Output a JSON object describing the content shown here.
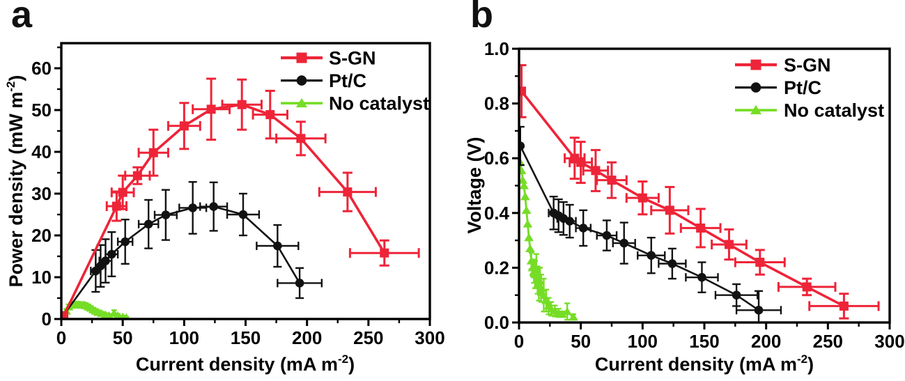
{
  "figure": {
    "background": "#ffffff",
    "text_color": "#000000"
  },
  "chart_data": [
    {
      "type": "line",
      "panel_label": "a",
      "title": "",
      "xlabel": {
        "main": "Current density (mA m",
        "sup": "-2",
        "close": ")"
      },
      "ylabel": {
        "main": "Power density (mW m",
        "sup": "-2",
        "close": ")"
      },
      "xlim": [
        0,
        300
      ],
      "ylim": [
        0,
        66
      ],
      "xticks": [
        0,
        50,
        100,
        150,
        200,
        250,
        300
      ],
      "xtick_labels": [
        "0",
        "50",
        "100",
        "150",
        "200",
        "250",
        "300"
      ],
      "xminor_step": 25,
      "yticks": [
        0,
        10,
        20,
        30,
        40,
        50,
        60
      ],
      "ytick_labels": [
        "0",
        "10",
        "20",
        "30",
        "40",
        "50",
        "60"
      ],
      "yminor_step": 5,
      "grid": false,
      "legend_position": "top-right-inside",
      "series": [
        {
          "name": "S-GN",
          "color": "#ee2438",
          "marker": "square",
          "x": [
            2,
            45,
            50,
            62,
            75,
            100,
            122,
            147,
            170,
            195,
            233,
            263
          ],
          "y": [
            0.8,
            27,
            30.3,
            34.3,
            39.8,
            46.2,
            50.2,
            51.3,
            48.9,
            43.2,
            30.4,
            15.8
          ],
          "xerr": [
            0,
            8,
            9,
            10,
            12,
            13,
            15,
            16,
            14,
            20,
            23,
            28
          ],
          "yerr": [
            0,
            3.5,
            4,
            2,
            5.5,
            5.5,
            7.3,
            6,
            5.7,
            4,
            4.6,
            3
          ]
        },
        {
          "name": "Pt/C",
          "color": "#121212",
          "marker": "circle",
          "x": [
            0,
            28,
            32,
            36,
            41,
            52,
            71,
            85,
            107,
            124,
            148,
            176,
            194
          ],
          "y": [
            0.2,
            11.5,
            12.7,
            13.9,
            15.5,
            18.5,
            22.7,
            24.9,
            26.6,
            26.9,
            25.0,
            17.5,
            8.6
          ],
          "xerr": [
            0,
            4,
            4,
            5,
            5,
            6,
            8,
            9,
            11,
            11,
            13,
            17,
            18
          ],
          "yerr": [
            0,
            5,
            5,
            5.2,
            5.3,
            5.3,
            5.8,
            6,
            6.2,
            5.8,
            5,
            5,
            3.6
          ]
        },
        {
          "name": "No catalyst",
          "color": "#76dd26",
          "marker": "triangle",
          "x": [
            2,
            4,
            6,
            8,
            10,
            12,
            14,
            16,
            18,
            20,
            22,
            24,
            26,
            28,
            30,
            33,
            36,
            39,
            43,
            46,
            50,
            53
          ],
          "y": [
            0.6,
            1.9,
            2.9,
            3.3,
            3.5,
            3.4,
            3.5,
            3.3,
            3.4,
            3.2,
            2.9,
            2.6,
            2.2,
            1.9,
            1.6,
            1.3,
            1.0,
            0.8,
            1.4,
            0.8,
            0.5,
            0.3
          ],
          "xerr": [
            0,
            0,
            0,
            0,
            0,
            0,
            0,
            0,
            0,
            0,
            0,
            0,
            0,
            0,
            0,
            0,
            0,
            0,
            0,
            0,
            0,
            0
          ],
          "yerr": [
            0.4,
            0.5,
            0.6,
            0.6,
            0.6,
            0.6,
            0.6,
            0.6,
            0.6,
            0.6,
            0.6,
            0.5,
            0.5,
            0.5,
            0.5,
            0.4,
            0.4,
            0.4,
            0.7,
            0.4,
            0.3,
            0.2
          ]
        }
      ]
    },
    {
      "type": "line",
      "panel_label": "b",
      "title": "",
      "xlabel": {
        "main": "Current density (mA m",
        "sup": "-2",
        "close": ")"
      },
      "ylabel": {
        "main": "Voltage (V)",
        "sup": "",
        "close": ""
      },
      "xlim": [
        0,
        300
      ],
      "ylim": [
        0,
        1.0
      ],
      "xticks": [
        0,
        50,
        100,
        150,
        200,
        250,
        300
      ],
      "xtick_labels": [
        "0",
        "50",
        "100",
        "150",
        "200",
        "250",
        "300"
      ],
      "xminor_step": 25,
      "yticks": [
        0,
        0.2,
        0.4,
        0.6,
        0.8,
        1.0
      ],
      "ytick_labels": [
        "0.0",
        "0.2",
        "0.4",
        "0.6",
        "0.8",
        "1.0"
      ],
      "yminor_step": 0.1,
      "grid": false,
      "legend_position": "top-right-inside",
      "series": [
        {
          "name": "S-GN",
          "color": "#ee2438",
          "marker": "square",
          "x": [
            2,
            45,
            50,
            62,
            75,
            100,
            122,
            147,
            170,
            195,
            233,
            263
          ],
          "y": [
            0.845,
            0.6,
            0.585,
            0.555,
            0.52,
            0.455,
            0.41,
            0.345,
            0.285,
            0.22,
            0.13,
            0.06
          ],
          "xerr": [
            0,
            8,
            9,
            10,
            12,
            13,
            15,
            16,
            14,
            20,
            23,
            28
          ],
          "yerr": [
            0.095,
            0.075,
            0.075,
            0.075,
            0.065,
            0.06,
            0.085,
            0.07,
            0.055,
            0.045,
            0.03,
            0.045
          ]
        },
        {
          "name": "Pt/C",
          "color": "#121212",
          "marker": "circle",
          "x": [
            1,
            28,
            32,
            36,
            41,
            52,
            71,
            85,
            107,
            124,
            148,
            176,
            194
          ],
          "y": [
            0.645,
            0.4,
            0.39,
            0.38,
            0.37,
            0.345,
            0.318,
            0.29,
            0.245,
            0.215,
            0.165,
            0.1,
            0.045
          ],
          "xerr": [
            0,
            4,
            4,
            5,
            5,
            6,
            8,
            9,
            11,
            11,
            13,
            17,
            18
          ],
          "yerr": [
            0.07,
            0.06,
            0.06,
            0.06,
            0.06,
            0.065,
            0.055,
            0.075,
            0.065,
            0.055,
            0.055,
            0.04,
            0.07
          ]
        },
        {
          "name": "No catalyst",
          "color": "#76dd26",
          "marker": "triangle",
          "x": [
            1,
            2,
            3,
            4,
            5,
            6,
            7,
            8,
            9,
            10,
            11,
            12,
            13,
            14,
            15,
            16,
            17,
            18,
            20,
            22,
            24,
            26,
            29,
            32,
            35,
            39,
            44
          ],
          "y": [
            0.585,
            0.555,
            0.52,
            0.5,
            0.46,
            0.41,
            0.36,
            0.31,
            0.27,
            0.225,
            0.2,
            0.185,
            0.175,
            0.19,
            0.155,
            0.14,
            0.15,
            0.125,
            0.1,
            0.08,
            0.06,
            0.05,
            0.042,
            0.035,
            0.03,
            0.04,
            0.02
          ],
          "xerr": [
            0,
            0,
            0,
            0,
            0,
            0,
            0,
            0,
            0,
            0,
            0,
            0,
            0,
            0,
            0,
            0,
            0,
            0,
            0,
            0,
            0,
            0,
            0,
            0,
            0,
            0,
            0
          ],
          "yerr": [
            0,
            0,
            0,
            0,
            0,
            0,
            0,
            0,
            0,
            0.03,
            0.03,
            0.04,
            0.05,
            0.06,
            0.05,
            0.06,
            0.05,
            0.05,
            0.06,
            0.04,
            0.03,
            0.025,
            0.02,
            0.015,
            0.01,
            0.03,
            0.01
          ]
        }
      ]
    }
  ]
}
